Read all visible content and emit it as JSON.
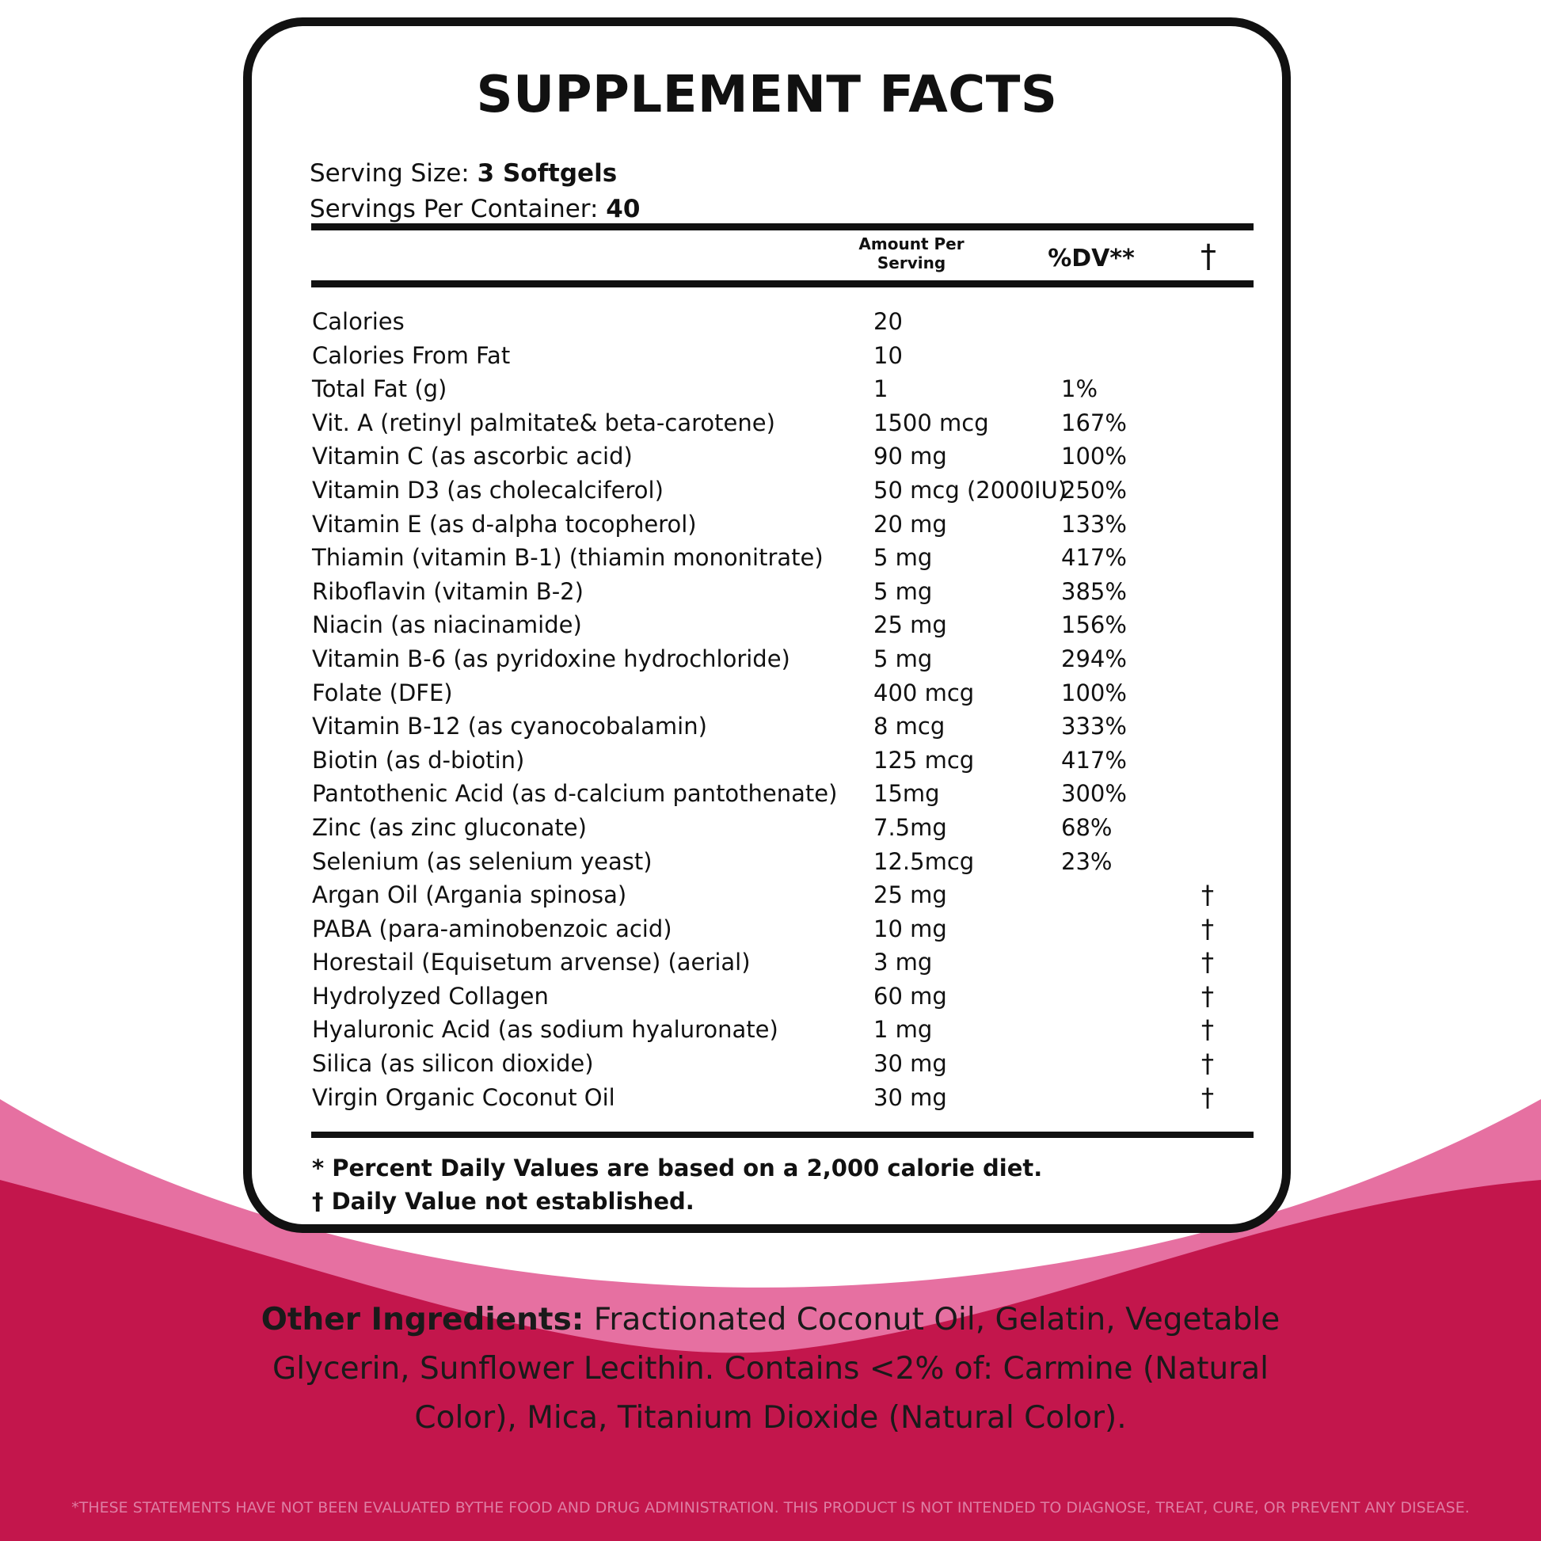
{
  "colors": {
    "magenta": "#c3164c",
    "pink": "#e670a1",
    "light_pink": "#f3b7cd",
    "ink": "#111111"
  },
  "label": {
    "title": "SUPPLEMENT FACTS",
    "serving_size_label": "Serving Size:",
    "serving_size_value": "3 Softgels",
    "servings_per_container_label": "Servings Per Container:",
    "servings_per_container_value": "40",
    "header_amount_line1": "Amount Per",
    "header_amount_line2": "Serving",
    "header_dv": "%DV**",
    "header_dagger": "†",
    "rows": [
      {
        "name": "Calories",
        "amount": "20",
        "dv": "",
        "dagger": ""
      },
      {
        "name": "Calories From Fat",
        "amount": "10",
        "dv": "",
        "dagger": ""
      },
      {
        "name": "Total Fat (g)",
        "amount": "1",
        "dv": "1%",
        "dagger": ""
      },
      {
        "name": "Vit. A (retinyl palmitate& beta-carotene)",
        "amount": "1500 mcg",
        "dv": "167%",
        "dagger": ""
      },
      {
        "name": "Vitamin C (as ascorbic acid)",
        "amount": "90 mg",
        "dv": "100%",
        "dagger": ""
      },
      {
        "name": "Vitamin D3 (as cholecalciferol)",
        "amount": "50 mcg (2000IU)",
        "dv": "250%",
        "dagger": ""
      },
      {
        "name": "Vitamin E (as d-alpha tocopherol)",
        "amount": "20 mg",
        "dv": "133%",
        "dagger": ""
      },
      {
        "name": "Thiamin (vitamin B-1) (thiamin mononitrate)",
        "amount": "5 mg",
        "dv": "417%",
        "dagger": ""
      },
      {
        "name": "Riboflavin (vitamin B-2)",
        "amount": "5 mg",
        "dv": "385%",
        "dagger": ""
      },
      {
        "name": "Niacin (as niacinamide)",
        "amount": "25 mg",
        "dv": "156%",
        "dagger": ""
      },
      {
        "name": "Vitamin B-6 (as pyridoxine hydrochloride)",
        "amount": "5 mg",
        "dv": "294%",
        "dagger": ""
      },
      {
        "name": "Folate (DFE)",
        "amount": "400 mcg",
        "dv": "100%",
        "dagger": ""
      },
      {
        "name": "Vitamin B-12 (as cyanocobalamin)",
        "amount": "8 mcg",
        "dv": "333%",
        "dagger": ""
      },
      {
        "name": "Biotin (as d-biotin)",
        "amount": "125 mcg",
        "dv": "417%",
        "dagger": ""
      },
      {
        "name": "Pantothenic Acid (as d-calcium pantothenate)",
        "amount": "15mg",
        "dv": "300%",
        "dagger": ""
      },
      {
        "name": "Zinc (as zinc gluconate)",
        "amount": "7.5mg",
        "dv": "68%",
        "dagger": ""
      },
      {
        "name": "Selenium (as selenium yeast)",
        "amount": "12.5mcg",
        "dv": "23%",
        "dagger": ""
      },
      {
        "name": "Argan Oil (Argania spinosa)",
        "amount": "25 mg",
        "dv": "",
        "dagger": "†"
      },
      {
        "name": "PABA (para-aminobenzoic acid)",
        "amount": "10 mg",
        "dv": "",
        "dagger": "†"
      },
      {
        "name": "Horestail (Equisetum arvense) (aerial)",
        "amount": "3 mg",
        "dv": "",
        "dagger": "†"
      },
      {
        "name": "Hydrolyzed Collagen",
        "amount": "60 mg",
        "dv": "",
        "dagger": "†"
      },
      {
        "name": "Hyaluronic Acid (as sodium hyaluronate)",
        "amount": "1 mg",
        "dv": "",
        "dagger": "†"
      },
      {
        "name": "Silica (as silicon dioxide)",
        "amount": "30 mg",
        "dv": "",
        "dagger": "†"
      },
      {
        "name": "Virgin Organic Coconut Oil",
        "amount": "30 mg",
        "dv": "",
        "dagger": "†"
      }
    ],
    "footnote_1": "* Percent Daily Values are based on a 2,000 calorie diet.",
    "footnote_2": "† Daily Value not established."
  },
  "other_ingredients": {
    "heading": "Other Ingredients:",
    "text": " Fractionated Coconut Oil, Gelatin, Vegetable Glycerin, Sunflower Lecithin. Contains <2% of: Carmine (Natural Color), Mica, Titanium Dioxide (Natural Color)."
  },
  "disclaimer": "*THESE STATEMENTS HAVE NOT BEEN EVALUATED BYTHE FOOD AND DRUG ADMINISTRATION. THIS PRODUCT IS NOT INTENDED TO DIAGNOSE, TREAT, CURE, OR PREVENT ANY DISEASE."
}
